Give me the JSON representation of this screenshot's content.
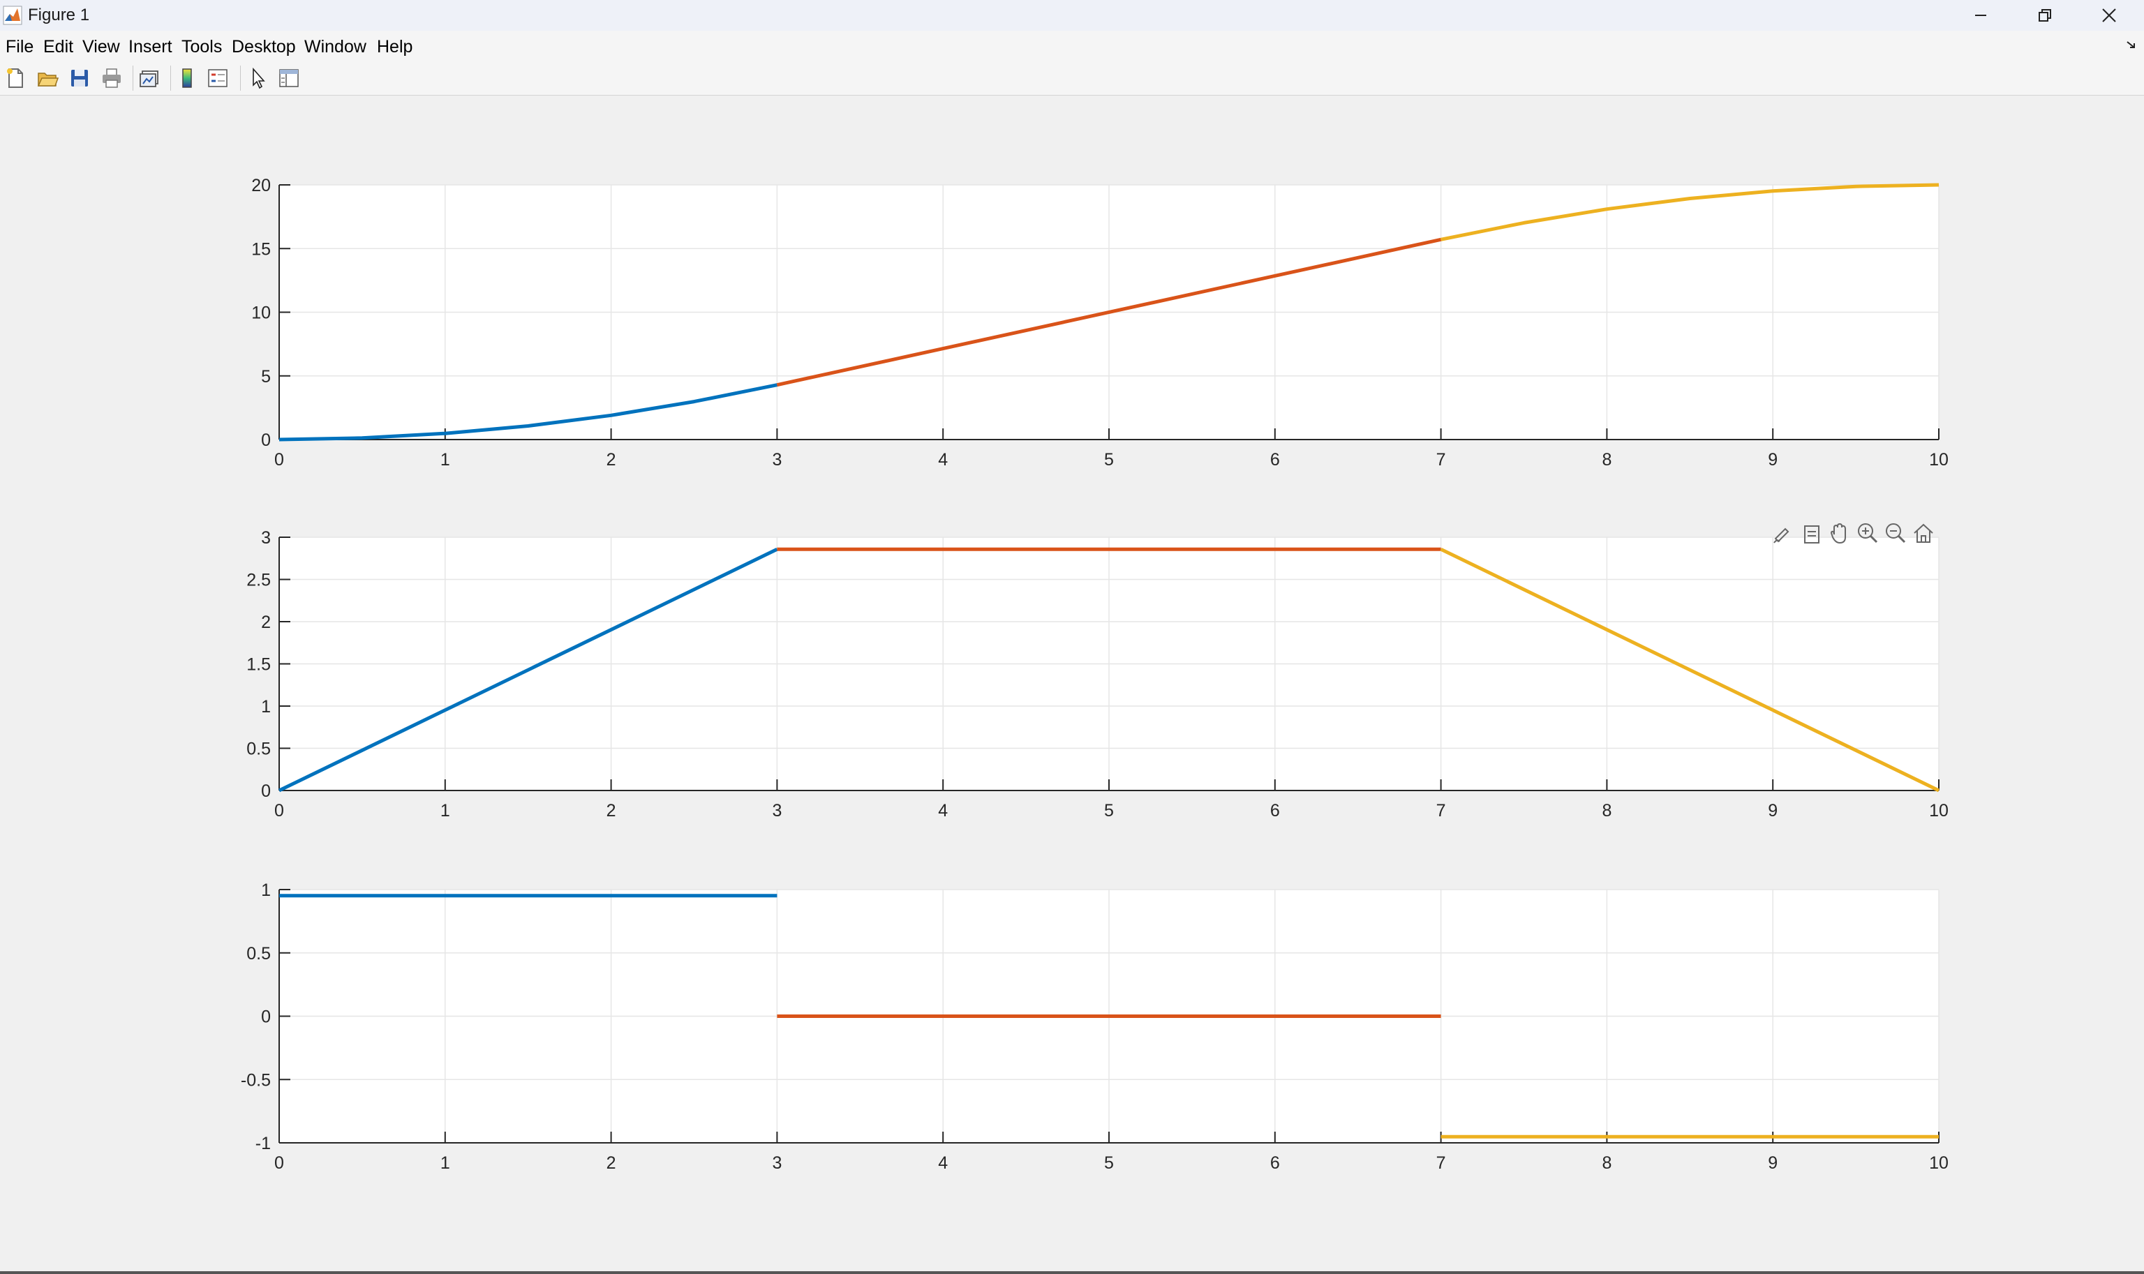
{
  "window": {
    "title": "Figure 1"
  },
  "menu": [
    "File",
    "Edit",
    "View",
    "Insert",
    "Tools",
    "Desktop",
    "Window",
    "Help"
  ],
  "toolbar": {
    "tools": [
      "new-figure-icon",
      "open-file-icon",
      "save-icon",
      "print-icon",
      "link-plot-icon",
      "colorbar-icon",
      "legend-icon",
      "pointer-icon",
      "property-inspector-icon"
    ]
  },
  "axes_toolbar": [
    "brush-icon",
    "data-tips-icon",
    "pan-icon",
    "zoom-in-icon",
    "zoom-out-icon",
    "home-icon"
  ],
  "colors": {
    "series1": "#0072BD",
    "series2": "#D95319",
    "series3": "#EDB120",
    "grid": "#e6e6e6",
    "axis": "#262626"
  },
  "chart_data": [
    {
      "type": "line",
      "title": "",
      "xlabel": "",
      "ylabel": "",
      "xlim": [
        0,
        10
      ],
      "ylim": [
        0,
        20
      ],
      "xticks": [
        "0",
        "1",
        "2",
        "3",
        "4",
        "5",
        "6",
        "7",
        "8",
        "9",
        "10"
      ],
      "yticks": [
        "0",
        "5",
        "10",
        "15",
        "20"
      ],
      "ytick_values": [
        0,
        5,
        10,
        15,
        20
      ],
      "grid": true,
      "series": [
        {
          "x": [
            0,
            0.5,
            1,
            1.5,
            2,
            2.5,
            3
          ],
          "y": [
            0,
            0.12,
            0.48,
            1.07,
            1.9,
            2.98,
            4.29
          ]
        },
        {
          "x": [
            3,
            7
          ],
          "y": [
            4.29,
            15.71
          ]
        },
        {
          "x": [
            7,
            7.5,
            8,
            8.5,
            9,
            9.5,
            10
          ],
          "y": [
            15.71,
            17.02,
            18.1,
            18.93,
            19.52,
            19.88,
            20
          ]
        }
      ]
    },
    {
      "type": "line",
      "title": "",
      "xlabel": "",
      "ylabel": "",
      "xlim": [
        0,
        10
      ],
      "ylim": [
        0,
        3
      ],
      "xticks": [
        "0",
        "1",
        "2",
        "3",
        "4",
        "5",
        "6",
        "7",
        "8",
        "9",
        "10"
      ],
      "yticks": [
        "0",
        "0.5",
        "1",
        "1.5",
        "2",
        "2.5",
        "3"
      ],
      "ytick_values": [
        0,
        0.5,
        1,
        1.5,
        2,
        2.5,
        3
      ],
      "grid": true,
      "series": [
        {
          "x": [
            0,
            3
          ],
          "y": [
            0,
            2.857
          ]
        },
        {
          "x": [
            3,
            7
          ],
          "y": [
            2.857,
            2.857
          ]
        },
        {
          "x": [
            7,
            10
          ],
          "y": [
            2.857,
            0
          ]
        }
      ]
    },
    {
      "type": "line",
      "title": "",
      "xlabel": "",
      "ylabel": "",
      "xlim": [
        0,
        10
      ],
      "ylim": [
        -1,
        1
      ],
      "xticks": [
        "0",
        "1",
        "2",
        "3",
        "4",
        "5",
        "6",
        "7",
        "8",
        "9",
        "10"
      ],
      "yticks": [
        "-1",
        "-0.5",
        "0",
        "0.5",
        "1"
      ],
      "ytick_values": [
        -1,
        -0.5,
        0,
        0.5,
        1
      ],
      "grid": true,
      "series": [
        {
          "x": [
            0,
            3
          ],
          "y": [
            0.952,
            0.952
          ]
        },
        {
          "x": [
            3,
            7
          ],
          "y": [
            0,
            0
          ]
        },
        {
          "x": [
            7,
            10
          ],
          "y": [
            -0.952,
            -0.952
          ]
        }
      ]
    }
  ]
}
